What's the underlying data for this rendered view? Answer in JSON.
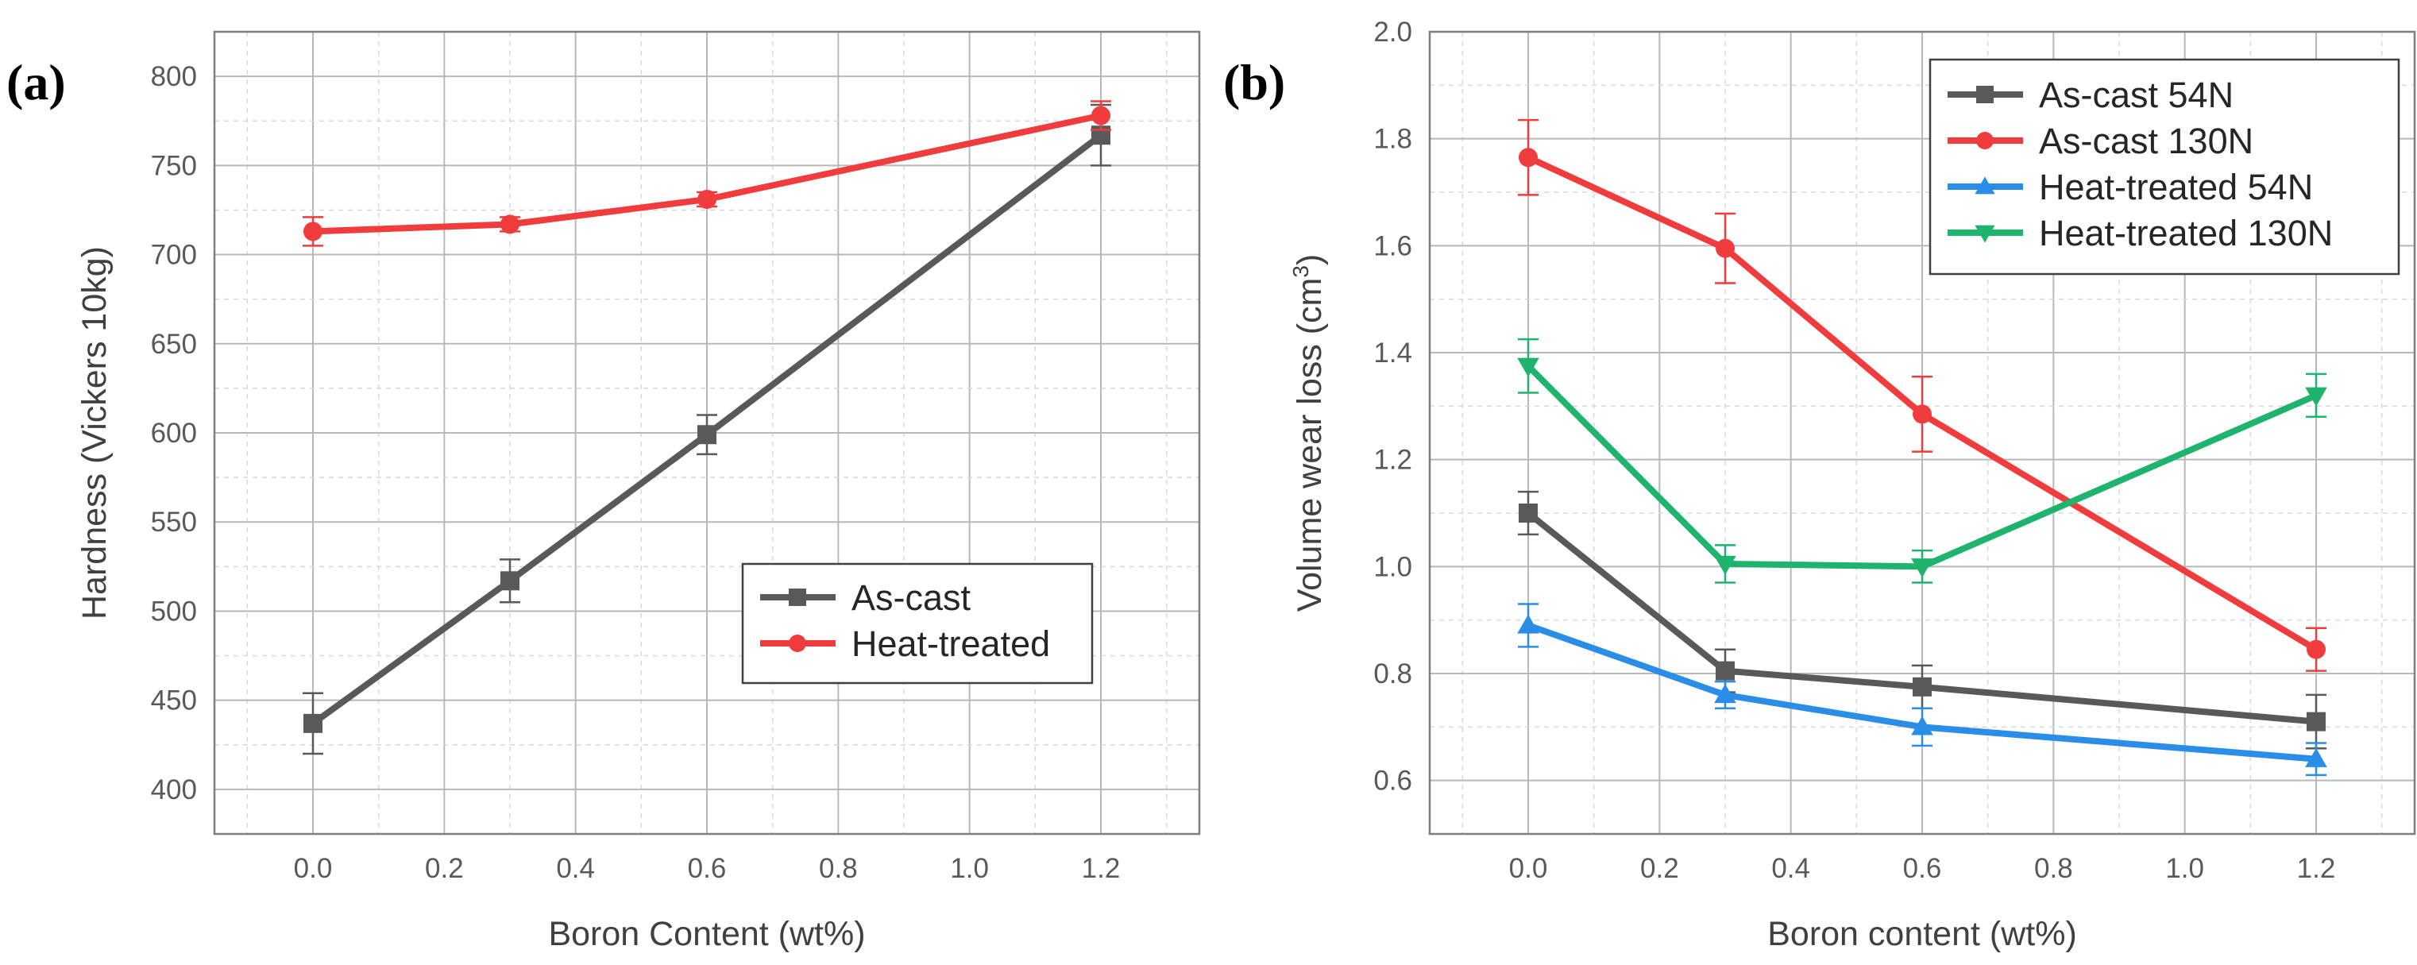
{
  "chart_data": [
    {
      "type": "line",
      "panel_label": "(a)",
      "xlabel": "Boron Content (wt%)",
      "ylabel": "Hardness (Vickers 10kg)",
      "xlim": [
        -0.15,
        1.35
      ],
      "ylim": [
        375,
        825
      ],
      "x_ticks": [
        "0.0",
        "0.2",
        "0.4",
        "0.6",
        "0.8",
        "1.0",
        "1.2"
      ],
      "y_ticks": [
        "400",
        "450",
        "500",
        "550",
        "600",
        "650",
        "700",
        "750",
        "800"
      ],
      "grid": true,
      "legend_position": "lower-right",
      "series": [
        {
          "name": "As-cast",
          "color": "#595959",
          "marker": "square",
          "x": [
            0.0,
            0.3,
            0.6,
            1.2
          ],
          "y": [
            437,
            517,
            599,
            767
          ],
          "err": [
            17,
            12,
            11,
            17
          ]
        },
        {
          "name": "Heat-treated",
          "color": "#f03c3c",
          "marker": "circle",
          "x": [
            0.0,
            0.3,
            0.6,
            1.2
          ],
          "y": [
            713,
            717,
            731,
            778
          ],
          "err": [
            8,
            4,
            4,
            8
          ]
        }
      ]
    },
    {
      "type": "line",
      "panel_label": "(b)",
      "xlabel": "Boron content (wt%)",
      "ylabel": "Volume wear loss (cm",
      "ylabel_sup": "3",
      "ylabel_end": ")",
      "xlim": [
        -0.15,
        1.35
      ],
      "ylim": [
        0.5,
        2.0
      ],
      "x_ticks": [
        "0.0",
        "0.2",
        "0.4",
        "0.6",
        "0.8",
        "1.0",
        "1.2"
      ],
      "y_ticks": [
        "0.6",
        "0.8",
        "1.0",
        "1.2",
        "1.4",
        "1.6",
        "1.8",
        "2.0"
      ],
      "grid": true,
      "legend_position": "top-right",
      "series": [
        {
          "name": "As-cast 54N",
          "color": "#595959",
          "marker": "square",
          "x": [
            0.0,
            0.3,
            0.6,
            1.2
          ],
          "y": [
            1.1,
            0.805,
            0.775,
            0.71
          ],
          "err": [
            0.04,
            0.04,
            0.04,
            0.05
          ]
        },
        {
          "name": "As-cast 130N",
          "color": "#f03c3c",
          "marker": "circle",
          "x": [
            0.0,
            0.3,
            0.6,
            1.2
          ],
          "y": [
            1.765,
            1.595,
            1.285,
            0.845
          ],
          "err": [
            0.07,
            0.065,
            0.07,
            0.04
          ]
        },
        {
          "name": "Heat-treated 54N",
          "color": "#2a8de8",
          "marker": "triangle-up",
          "x": [
            0.0,
            0.3,
            0.6,
            1.2
          ],
          "y": [
            0.89,
            0.76,
            0.7,
            0.64
          ],
          "err": [
            0.04,
            0.025,
            0.035,
            0.03
          ]
        },
        {
          "name": "Heat-treated 130N",
          "color": "#1fb46e",
          "marker": "triangle-down",
          "x": [
            0.0,
            0.3,
            0.6,
            1.2
          ],
          "y": [
            1.375,
            1.005,
            1.0,
            1.32
          ],
          "err": [
            0.05,
            0.035,
            0.03,
            0.04
          ]
        }
      ]
    }
  ]
}
